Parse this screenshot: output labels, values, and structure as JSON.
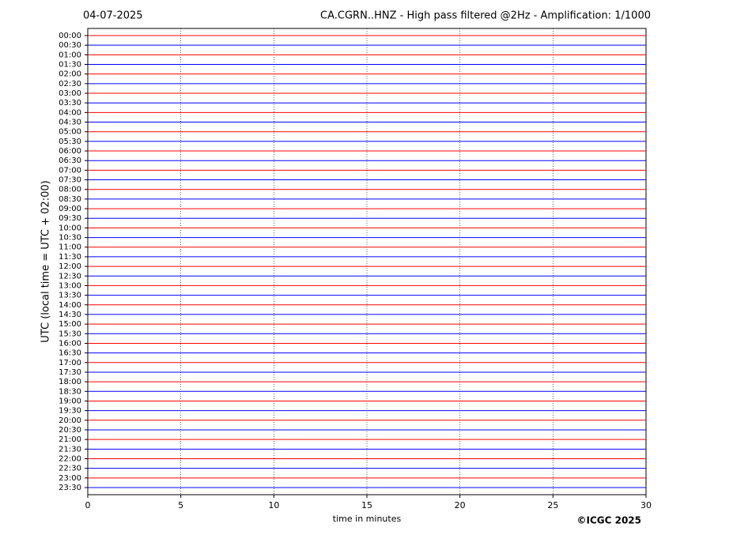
{
  "chart_data": {
    "type": "helicorder",
    "date": "04-07-2025",
    "title": "CA.CGRN..HNZ - High pass filtered @2Hz - Amplification: 1/1000",
    "ylabel": "UTC (local time = UTC + 02:00)",
    "xlabel": "time in minutes",
    "credit": "©ICGC 2025",
    "categories": [
      "00:00",
      "00:30",
      "01:00",
      "01:30",
      "02:00",
      "02:30",
      "03:00",
      "03:30",
      "04:00",
      "04:30",
      "05:00",
      "05:30",
      "06:00",
      "06:30",
      "07:00",
      "07:30",
      "08:00",
      "08:30",
      "09:00",
      "09:30",
      "10:00",
      "10:30",
      "11:00",
      "11:30",
      "12:00",
      "12:30",
      "13:00",
      "13:30",
      "14:00",
      "14:30",
      "15:00",
      "15:30",
      "16:00",
      "16:30",
      "17:00",
      "17:30",
      "18:00",
      "18:30",
      "19:00",
      "19:30",
      "20:00",
      "20:30",
      "21:00",
      "21:30",
      "22:00",
      "22:30",
      "23:00",
      "23:30"
    ],
    "colors": [
      "#ff0000",
      "#0000ff"
    ],
    "xlim": [
      0,
      30
    ],
    "xticks": [
      0,
      5,
      10,
      15,
      20,
      25,
      30
    ],
    "grid": true
  }
}
